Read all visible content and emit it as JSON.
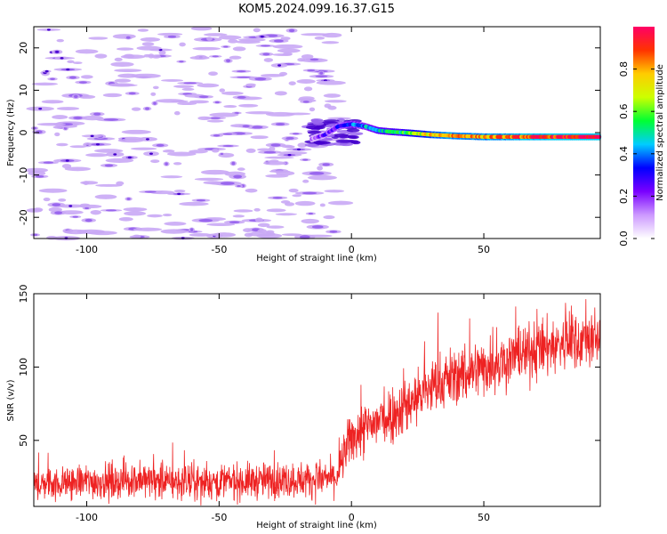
{
  "title": "KOM5.2024.099.16.37.G15",
  "colors": {
    "snr_line": "#ee2222",
    "contour_light": "#c9a8f5",
    "contour_mid": "#9966ee",
    "contour_dark": "#4400cc"
  },
  "chart_data": [
    {
      "type": "heatmap",
      "xlabel": "Height of straight line (km)",
      "ylabel": "Frequency (Hz)",
      "xlim": [
        -120,
        94
      ],
      "ylim": [
        -25,
        25
      ],
      "x_ticks": [
        -100,
        -50,
        0,
        50
      ],
      "y_ticks": [
        -20,
        -10,
        0,
        10,
        20
      ],
      "colorbar": {
        "label": "Normalized spectral amplitude",
        "range": [
          0,
          1
        ],
        "ticks": [
          0.0,
          0.2,
          0.4,
          0.6,
          0.8
        ],
        "colormap": [
          "#ffffff",
          "#cc99ff",
          "#7a00ff",
          "#0000ff",
          "#00ccff",
          "#00ff33",
          "#ccff00",
          "#ffcc00",
          "#ff3300",
          "#ff0066"
        ]
      },
      "ridge": {
        "x": [
          -15,
          -10,
          -5,
          0,
          5,
          10,
          15,
          20,
          30,
          40,
          50,
          60,
          70,
          80,
          90,
          94
        ],
        "frequency": [
          -1.5,
          -0.5,
          1.5,
          2.0,
          1.5,
          0.5,
          0.2,
          0.0,
          -0.5,
          -0.8,
          -1.0,
          -1.0,
          -1.0,
          -1.0,
          -1.0,
          -1.0
        ],
        "amplitude": [
          0.15,
          0.2,
          0.3,
          0.35,
          0.4,
          0.45,
          0.5,
          0.55,
          0.75,
          0.85,
          0.8,
          0.85,
          0.9,
          0.92,
          0.95,
          0.95
        ]
      }
    },
    {
      "type": "line",
      "xlabel": "Height of straight line (km)",
      "ylabel": "SNR (v/v)",
      "xlim": [
        -120,
        94
      ],
      "ylim": [
        5,
        150
      ],
      "x_ticks": [
        -100,
        -50,
        0,
        50
      ],
      "y_ticks": [
        50,
        100,
        150
      ],
      "series": [
        {
          "x": [
            -120,
            -110,
            -100,
            -90,
            -80,
            -70,
            -60,
            -50,
            -40,
            -30,
            -20,
            -10,
            -5,
            -3,
            0,
            5,
            10,
            15,
            20,
            25,
            30,
            35,
            40,
            45,
            50,
            55,
            60,
            65,
            70,
            75,
            80,
            85,
            90,
            94
          ],
          "values": [
            20,
            21,
            22,
            22,
            23,
            22,
            21,
            22,
            22,
            23,
            23,
            24,
            25,
            40,
            52,
            57,
            63,
            68,
            73,
            80,
            86,
            91,
            94,
            97,
            100,
            103,
            106,
            109,
            112,
            114,
            116,
            118,
            119,
            120
          ],
          "spread": [
            10,
            10,
            11,
            11,
            11,
            11,
            11,
            11,
            11,
            11,
            11,
            11,
            11,
            14,
            16,
            17,
            18,
            18,
            18,
            18,
            18,
            18,
            18,
            18,
            18,
            18,
            18,
            18,
            18,
            18,
            18,
            18,
            18,
            18
          ]
        }
      ]
    }
  ]
}
